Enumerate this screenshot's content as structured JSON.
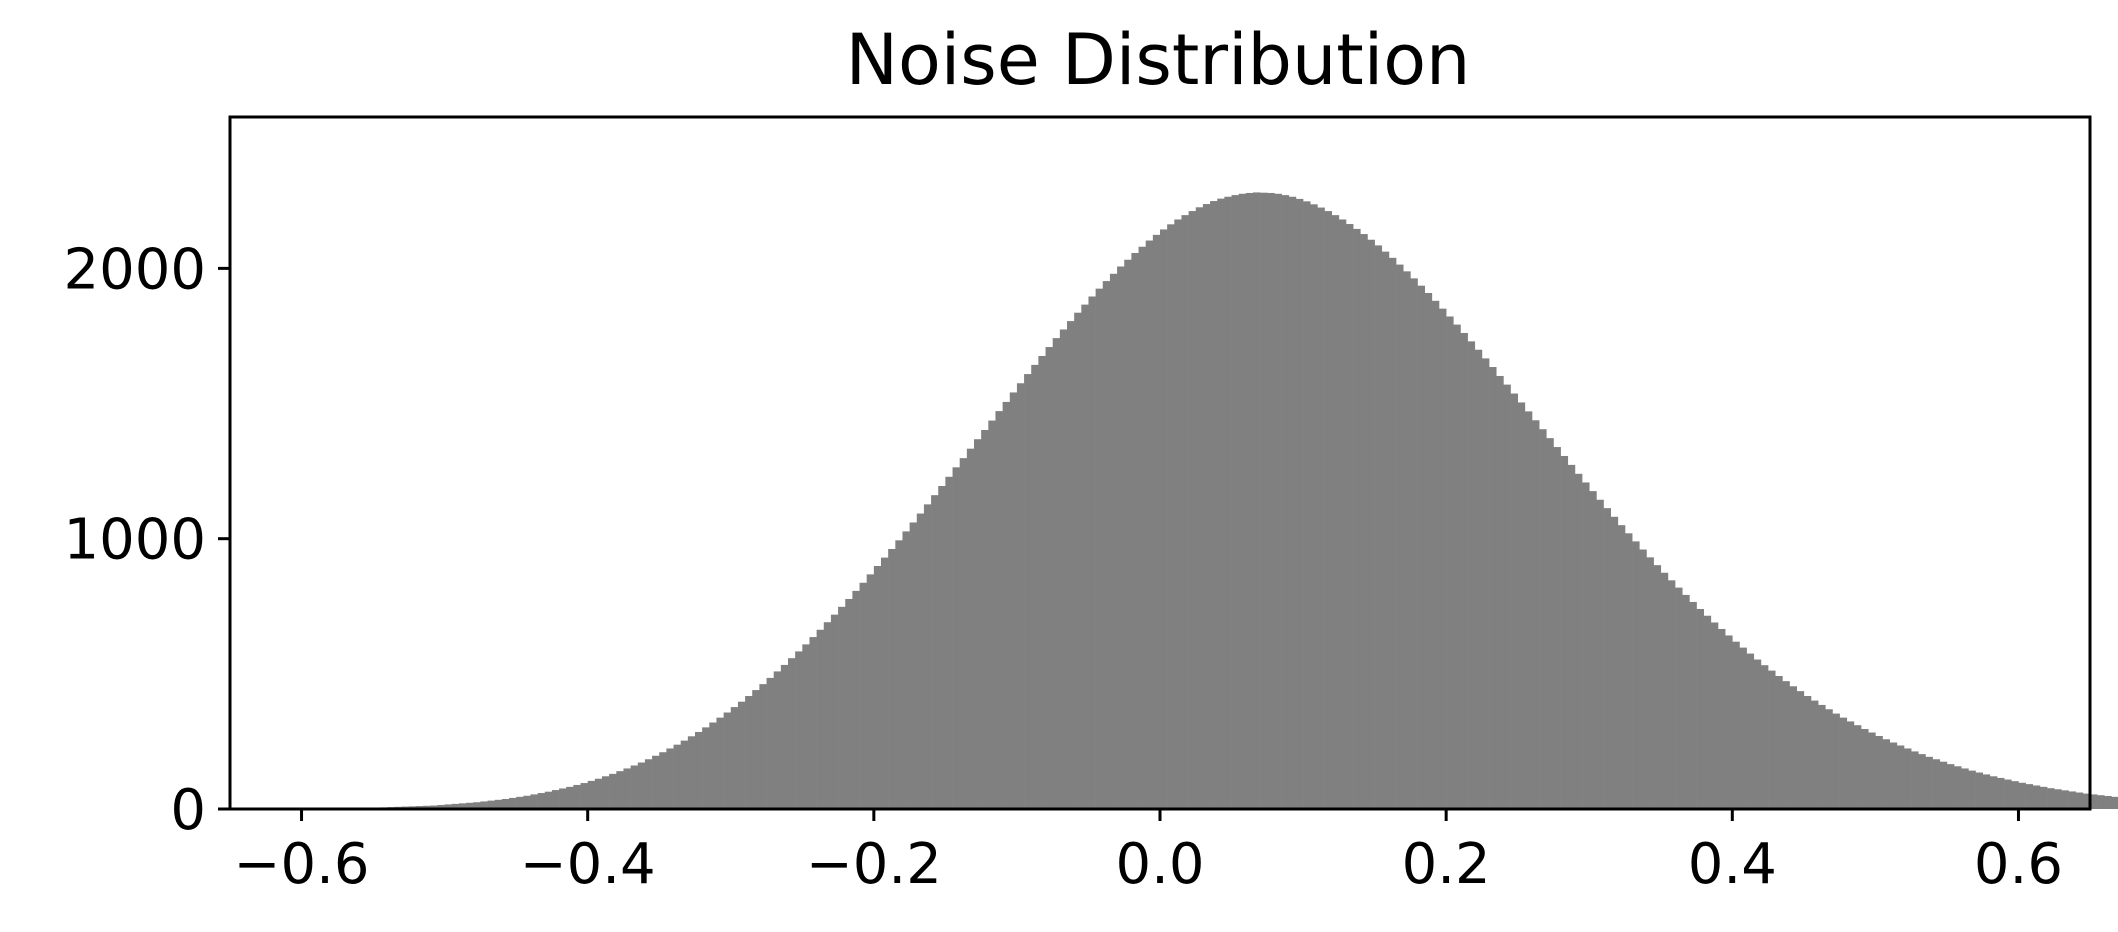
{
  "chart_data": {
    "type": "bar",
    "title": "Noise Distribution",
    "xlabel": "",
    "ylabel": "",
    "xlim": [
      -0.65,
      0.65
    ],
    "ylim": [
      0,
      2560
    ],
    "grid": false,
    "bar_color": "#808080",
    "axis_color": "#000000",
    "x_ticks": [
      {
        "value": -0.6,
        "label": "−0.6"
      },
      {
        "value": -0.4,
        "label": "−0.4"
      },
      {
        "value": -0.2,
        "label": "−0.2"
      },
      {
        "value": 0.0,
        "label": "0.0"
      },
      {
        "value": 0.2,
        "label": "0.2"
      },
      {
        "value": 0.4,
        "label": "0.4"
      },
      {
        "value": 0.6,
        "label": "0.6"
      }
    ],
    "y_ticks": [
      {
        "value": 0,
        "label": "0"
      },
      {
        "value": 1000,
        "label": "1000"
      },
      {
        "value": 2000,
        "label": "2000"
      }
    ],
    "bin_start": -0.6,
    "bin_width": 0.005,
    "counts": [
      0,
      0,
      1,
      1,
      1,
      2,
      2,
      3,
      4,
      4,
      5,
      6,
      7,
      8,
      9,
      10,
      11,
      12,
      13,
      15,
      17,
      19,
      21,
      23,
      25,
      28,
      31,
      34,
      37,
      41,
      45,
      49,
      54,
      59,
      64,
      70,
      76,
      82,
      89,
      96,
      104,
      112,
      121,
      130,
      140,
      150,
      161,
      172,
      184,
      197,
      210,
      224,
      238,
      253,
      269,
      285,
      302,
      320,
      338,
      357,
      377,
      397,
      418,
      440,
      462,
      485,
      509,
      533,
      558,
      583,
      609,
      636,
      663,
      691,
      719,
      748,
      777,
      807,
      837,
      868,
      899,
      930,
      962,
      994,
      1027,
      1060,
      1093,
      1127,
      1161,
      1195,
      1229,
      1264,
      1298,
      1333,
      1368,
      1402,
      1437,
      1472,
      1506,
      1541,
      1575,
      1609,
      1643,
      1676,
      1709,
      1742,
      1774,
      1805,
      1836,
      1866,
      1896,
      1925,
      1953,
      1980,
      2007,
      2032,
      2057,
      2080,
      2103,
      2124,
      2144,
      2163,
      2181,
      2197,
      2212,
      2226,
      2238,
      2249,
      2258,
      2265,
      2271,
      2276,
      2279,
      2281,
      2280,
      2279,
      2276,
      2271,
      2265,
      2257,
      2248,
      2237,
      2225,
      2212,
      2197,
      2181,
      2164,
      2146,
      2127,
      2106,
      2085,
      2062,
      2039,
      2014,
      1989,
      1963,
      1936,
      1909,
      1880,
      1851,
      1822,
      1792,
      1761,
      1730,
      1699,
      1667,
      1635,
      1602,
      1570,
      1537,
      1504,
      1471,
      1438,
      1405,
      1372,
      1339,
      1306,
      1273,
      1240,
      1208,
      1176,
      1144,
      1113,
      1081,
      1050,
      1020,
      990,
      960,
      931,
      902,
      874,
      846,
      819,
      792,
      766,
      740,
      715,
      690,
      666,
      642,
      619,
      597,
      575,
      553,
      532,
      512,
      492,
      473,
      454,
      436,
      418,
      401,
      385,
      369,
      353,
      338,
      324,
      310,
      296,
      283,
      270,
      258,
      246,
      235,
      224,
      213,
      203,
      193,
      184,
      175,
      166,
      158,
      150,
      142,
      135,
      128,
      121,
      115,
      109,
      103,
      97,
      92,
      87,
      82,
      77,
      73,
      69,
      65,
      61,
      57,
      54,
      51,
      48,
      45,
      42,
      39,
      37,
      34,
      32,
      30,
      28,
      26,
      24,
      22,
      20,
      19,
      17,
      16,
      15,
      13,
      12,
      11,
      10,
      9,
      8,
      7,
      6,
      5,
      4,
      3,
      3,
      2,
      2,
      1,
      1,
      1,
      1,
      0,
      0,
      0
    ]
  }
}
